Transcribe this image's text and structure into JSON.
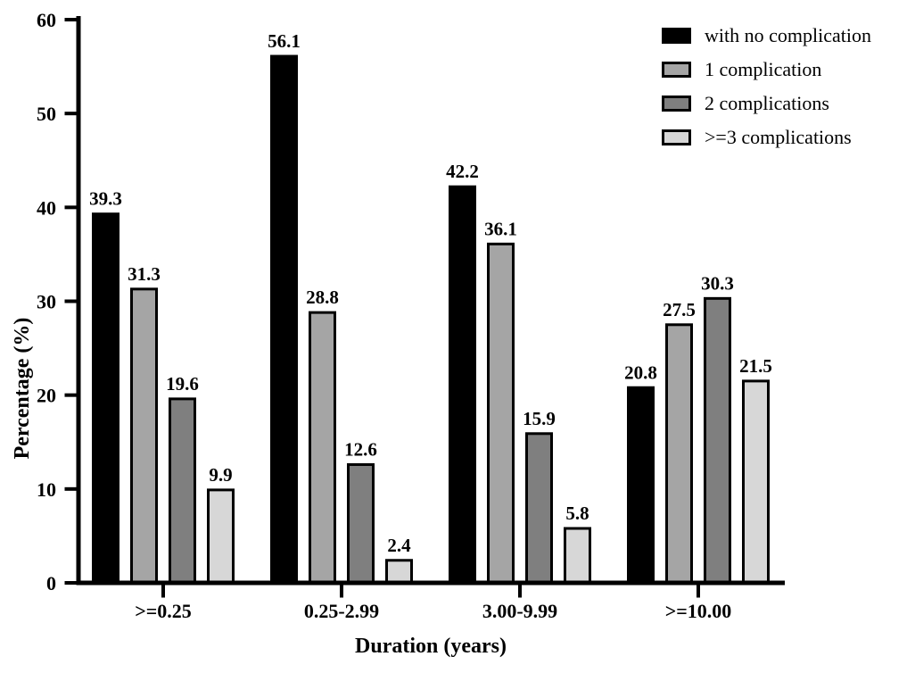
{
  "chart_data": {
    "type": "bar",
    "categories": [
      ">=0.25",
      "0.25-2.99",
      "3.00-9.99",
      ">=10.00"
    ],
    "series": [
      {
        "name": "with no complication",
        "color": "#000000",
        "values": [
          39.3,
          56.1,
          42.2,
          20.8
        ]
      },
      {
        "name": "1 complication",
        "color": "#a5a5a5",
        "values": [
          31.3,
          28.8,
          36.1,
          27.5
        ]
      },
      {
        "name": "2 complications",
        "color": "#7f7f7f",
        "values": [
          19.6,
          12.6,
          15.9,
          30.3
        ]
      },
      {
        "name": ">=3 complications",
        "color": "#d7d7d7",
        "values": [
          9.9,
          2.4,
          5.8,
          21.5
        ]
      }
    ],
    "title": "",
    "xlabel": "Duration (years)",
    "ylabel": "Percentage (%)",
    "ylim": [
      0,
      60
    ],
    "yticks": [
      0,
      10,
      20,
      30,
      40,
      50,
      60
    ],
    "grid": false,
    "legend_position": "top-right",
    "bar_outline_color": "#000000",
    "value_labels": true,
    "axis_color": "#000000"
  }
}
